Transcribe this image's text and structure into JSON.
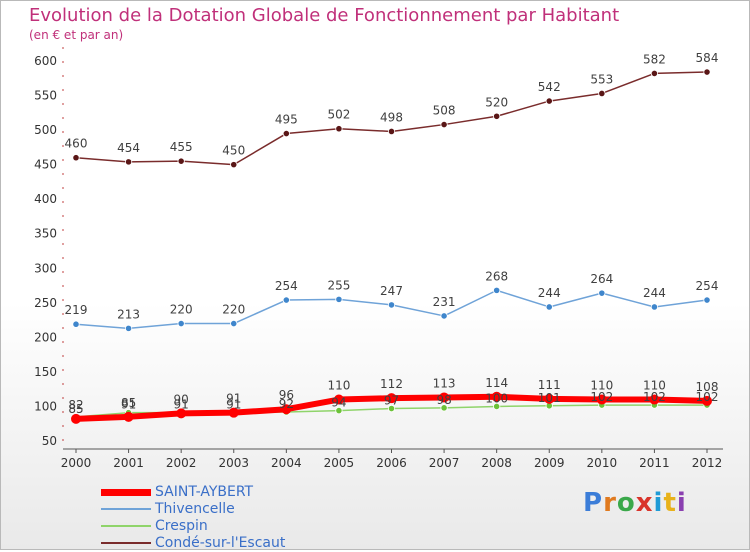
{
  "title": "Evolution de la Dotation Globale de Fonctionnement par Habitant",
  "subtitle": "(en € et par an)",
  "brand": {
    "text": "Proxiti",
    "letter_colors": [
      "#3b7dd8",
      "#e07a1f",
      "#3aa84a",
      "#d9342b",
      "#1f9bd6",
      "#e8b21a",
      "#8a3fb0"
    ]
  },
  "chart_data": {
    "type": "line",
    "x": [
      "2000",
      "2001",
      "2002",
      "2003",
      "2004",
      "2005",
      "2006",
      "2007",
      "2008",
      "2009",
      "2010",
      "2011",
      "2012"
    ],
    "ylim": [
      50,
      600
    ],
    "yticks": [
      50,
      100,
      150,
      200,
      250,
      300,
      350,
      400,
      450,
      500,
      550,
      600
    ],
    "legend_position": "bottom-left",
    "grid": false,
    "series": [
      {
        "name": "SAINT-AYBERT",
        "color": "#ff0000",
        "marker_color": "#ff0000",
        "label_color": "#404040",
        "width": 6,
        "values": [
          82,
          85,
          90,
          91,
          96,
          110,
          112,
          113,
          114,
          111,
          110,
          110,
          108
        ]
      },
      {
        "name": "Thivencelle",
        "color": "#6fa3d8",
        "marker_color": "#3f86cc",
        "label_color": "#404040",
        "width": 1.5,
        "values": [
          219,
          213,
          220,
          220,
          254,
          255,
          247,
          231,
          268,
          244,
          264,
          244,
          254
        ]
      },
      {
        "name": "Crespin",
        "color": "#8fd46a",
        "marker_color": "#6cc238",
        "label_color": "#404040",
        "width": 1.5,
        "values": [
          85,
          91,
          91,
          91,
          92,
          94,
          97,
          98,
          100,
          101,
          102,
          102,
          102
        ]
      },
      {
        "name": "Condé-sur-l'Escaut",
        "color": "#7a2c2c",
        "marker_color": "#5a1616",
        "label_color": "#404040",
        "width": 1.5,
        "values": [
          460,
          454,
          455,
          450,
          495,
          502,
          498,
          508,
          520,
          542,
          553,
          582,
          584
        ]
      }
    ]
  }
}
